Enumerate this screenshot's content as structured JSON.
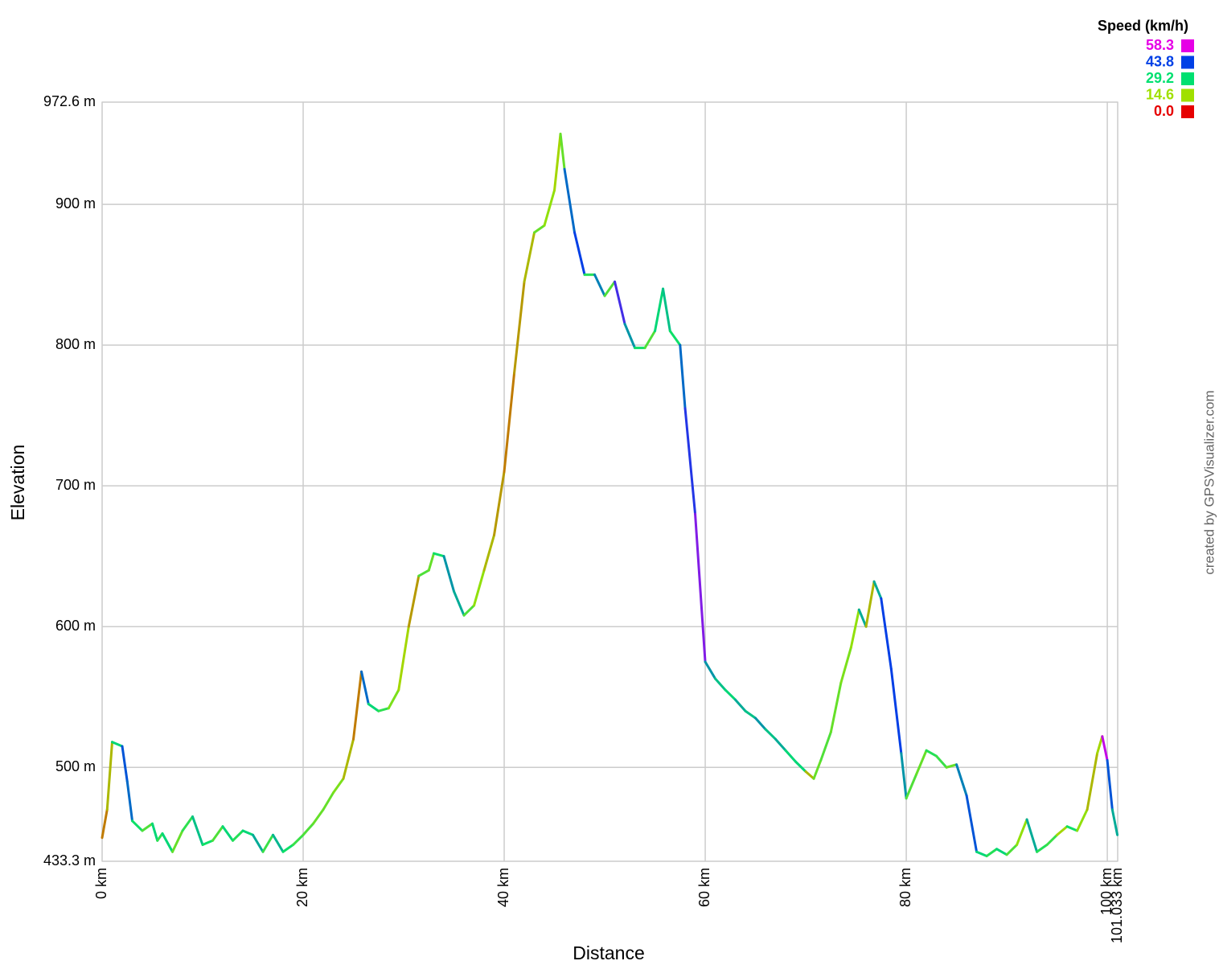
{
  "chart_data": {
    "type": "line",
    "x_label": "Distance",
    "y_label": "Elevation",
    "credit": "created by GPSVisualizer.com",
    "x": [
      0,
      0.5,
      1,
      2,
      2.5,
      3,
      4,
      5,
      5.5,
      6,
      7,
      8,
      9,
      10,
      11,
      12,
      13,
      14,
      15,
      16,
      17,
      18,
      19,
      20,
      21,
      22,
      23,
      24,
      25,
      25.8,
      26.5,
      27.5,
      28.5,
      29.5,
      30.5,
      31.5,
      32.5,
      33,
      34,
      35,
      36,
      37,
      38,
      39,
      40,
      41,
      42,
      43,
      44,
      45,
      45.6,
      46,
      47,
      48,
      49,
      50,
      51,
      52,
      53,
      54,
      55,
      55.8,
      56.5,
      57.5,
      58,
      59,
      60,
      61,
      62,
      63,
      64,
      65,
      66,
      67,
      68,
      69,
      70,
      70.8,
      71.5,
      72.5,
      73.5,
      74.5,
      75.3,
      76,
      76.8,
      77.5,
      78.5,
      79.5,
      80,
      81,
      82,
      83,
      84,
      85,
      86,
      87,
      88,
      89,
      90,
      91,
      92,
      93,
      94,
      95,
      96,
      97,
      98,
      99,
      99.5,
      100,
      100.5,
      101
    ],
    "values": [
      450,
      470,
      518,
      515,
      490,
      462,
      455,
      460,
      448,
      453,
      440,
      455,
      465,
      445,
      448,
      458,
      448,
      455,
      452,
      440,
      452,
      440,
      445,
      452,
      460,
      470,
      482,
      492,
      520,
      568,
      545,
      540,
      542,
      555,
      600,
      636,
      640,
      652,
      650,
      625,
      608,
      615,
      640,
      665,
      710,
      780,
      845,
      880,
      885,
      910,
      950,
      925,
      880,
      850,
      850,
      835,
      845,
      815,
      798,
      798,
      810,
      840,
      810,
      800,
      755,
      680,
      575,
      563,
      555,
      548,
      540,
      535,
      527,
      520,
      512,
      504,
      497,
      492,
      505,
      525,
      560,
      585,
      612,
      600,
      632,
      620,
      570,
      510,
      478,
      495,
      512,
      508,
      500,
      502,
      480,
      440,
      437,
      442,
      438,
      445,
      463,
      440,
      445,
      452,
      458,
      455,
      470,
      510,
      522,
      505,
      470,
      452
    ],
    "speed": [
      10,
      8,
      12,
      30,
      42,
      40,
      28,
      22,
      30,
      25,
      30,
      20,
      25,
      32,
      28,
      22,
      30,
      26,
      30,
      34,
      24,
      33,
      28,
      24,
      22,
      20,
      20,
      18,
      12,
      8,
      40,
      30,
      25,
      18,
      14,
      10,
      22,
      20,
      28,
      36,
      34,
      22,
      16,
      12,
      10,
      8,
      10,
      12,
      20,
      16,
      14,
      20,
      40,
      44,
      26,
      38,
      22,
      48,
      36,
      28,
      22,
      30,
      32,
      28,
      40,
      46,
      52,
      36,
      32,
      30,
      34,
      32,
      36,
      32,
      34,
      30,
      30,
      12,
      20,
      22,
      20,
      18,
      16,
      34,
      12,
      34,
      44,
      44,
      36,
      22,
      20,
      26,
      24,
      20,
      38,
      42,
      30,
      26,
      30,
      22,
      16,
      34,
      26,
      24,
      14,
      28,
      16,
      12,
      14,
      56,
      42,
      34
    ],
    "xlim": [
      0,
      101.033
    ],
    "ylim": [
      433.3,
      972.6
    ],
    "xticks": [
      {
        "value": 0,
        "label": "0 km"
      },
      {
        "value": 20,
        "label": "20 km"
      },
      {
        "value": 40,
        "label": "40 km"
      },
      {
        "value": 60,
        "label": "60 km"
      },
      {
        "value": 80,
        "label": "80 km"
      },
      {
        "value": 100,
        "label": "100 km"
      },
      {
        "value": 101.033,
        "label": "101.033 km"
      }
    ],
    "yticks": [
      {
        "value": 433.3,
        "label": "433.3 m"
      },
      {
        "value": 500,
        "label": "500 m"
      },
      {
        "value": 600,
        "label": "600 m"
      },
      {
        "value": 700,
        "label": "700 m"
      },
      {
        "value": 800,
        "label": "800 m"
      },
      {
        "value": 900,
        "label": "900 m"
      },
      {
        "value": 972.6,
        "label": "972.6 m"
      }
    ],
    "grid": true,
    "legend": {
      "title": "Speed (km/h)",
      "position": "top-right",
      "stops": [
        {
          "value": 58.3,
          "color": "#e600e6"
        },
        {
          "value": 43.8,
          "color": "#0040e6"
        },
        {
          "value": 29.2,
          "color": "#00e070"
        },
        {
          "value": 14.6,
          "color": "#a0e000"
        },
        {
          "value": 0,
          "label": "0.0",
          "color": "#e60000"
        }
      ]
    }
  }
}
